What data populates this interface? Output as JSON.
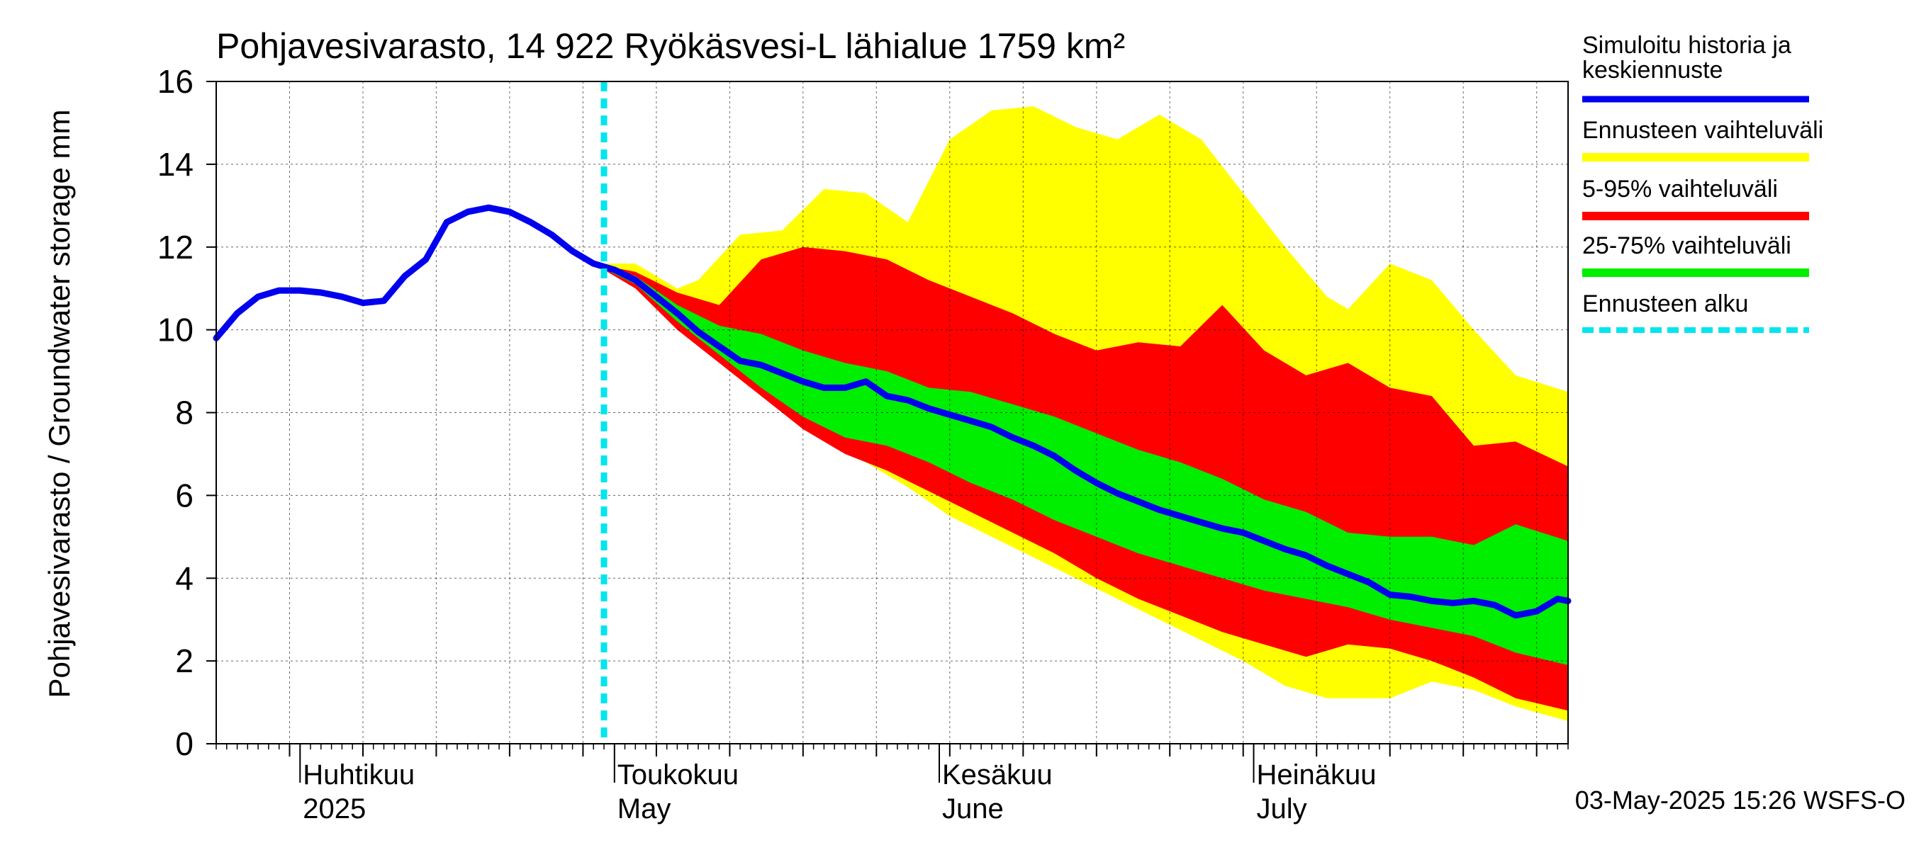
{
  "chart_data": {
    "type": "area",
    "title": "Pohjavesivarasto, 14 922 Ryökäsvesi-L lähialue 1759 km²",
    "ylabel": "Pohjavesivarasto / Groundwater storage   mm",
    "ylim": [
      0,
      16
    ],
    "yticks": [
      "0",
      "2",
      "4",
      "6",
      "8",
      "10",
      "12",
      "14",
      "16"
    ],
    "x_range": [
      "2025-03-24",
      "2025-07-31"
    ],
    "months": [
      {
        "fi": "Huhtikuu",
        "en": "2025",
        "start": "2025-04-01"
      },
      {
        "fi": "Toukokuu",
        "en": "May",
        "start": "2025-05-01"
      },
      {
        "fi": "Kesäkuu",
        "en": "June",
        "start": "2025-06-01"
      },
      {
        "fi": "Heinäkuu",
        "en": "July",
        "start": "2025-07-01"
      }
    ],
    "grid": true,
    "forecast_start": "2025-04-30",
    "legend_position": "right",
    "legend": [
      {
        "label": "Simuloitu historia ja keskiennuste",
        "color": "#0000ee",
        "style": "line"
      },
      {
        "label": "Ennusteen vaihteluväli",
        "color": "#ffff00",
        "style": "band"
      },
      {
        "label": "5-95% vaihteluväli",
        "color": "#ff0000",
        "style": "band"
      },
      {
        "label": "25-75% vaihteluväli",
        "color": "#00ee00",
        "style": "band"
      },
      {
        "label": "Ennusteen alku",
        "color": "#00e5ee",
        "style": "dashed"
      }
    ],
    "series": [
      {
        "name": "Simuloitu historia ja keskiennuste",
        "color": "#0000ee",
        "points": [
          [
            "2025-03-24",
            9.8
          ],
          [
            "2025-03-26",
            10.4
          ],
          [
            "2025-03-28",
            10.8
          ],
          [
            "2025-03-30",
            10.95
          ],
          [
            "2025-04-01",
            10.95
          ],
          [
            "2025-04-03",
            10.9
          ],
          [
            "2025-04-05",
            10.8
          ],
          [
            "2025-04-07",
            10.65
          ],
          [
            "2025-04-09",
            10.7
          ],
          [
            "2025-04-11",
            11.3
          ],
          [
            "2025-04-13",
            11.7
          ],
          [
            "2025-04-15",
            12.6
          ],
          [
            "2025-04-17",
            12.85
          ],
          [
            "2025-04-19",
            12.95
          ],
          [
            "2025-04-21",
            12.85
          ],
          [
            "2025-04-23",
            12.6
          ],
          [
            "2025-04-25",
            12.3
          ],
          [
            "2025-04-27",
            11.9
          ],
          [
            "2025-04-29",
            11.6
          ],
          [
            "2025-05-01",
            11.45
          ],
          [
            "2025-05-03",
            11.2
          ],
          [
            "2025-05-05",
            10.8
          ],
          [
            "2025-05-07",
            10.4
          ],
          [
            "2025-05-09",
            9.95
          ],
          [
            "2025-05-11",
            9.6
          ],
          [
            "2025-05-13",
            9.25
          ],
          [
            "2025-05-15",
            9.15
          ],
          [
            "2025-05-17",
            8.95
          ],
          [
            "2025-05-19",
            8.75
          ],
          [
            "2025-05-21",
            8.6
          ],
          [
            "2025-05-23",
            8.6
          ],
          [
            "2025-05-25",
            8.75
          ],
          [
            "2025-05-27",
            8.4
          ],
          [
            "2025-05-29",
            8.3
          ],
          [
            "2025-05-31",
            8.1
          ],
          [
            "2025-06-02",
            7.95
          ],
          [
            "2025-06-04",
            7.8
          ],
          [
            "2025-06-06",
            7.65
          ],
          [
            "2025-06-08",
            7.4
          ],
          [
            "2025-06-10",
            7.2
          ],
          [
            "2025-06-12",
            6.95
          ],
          [
            "2025-06-14",
            6.6
          ],
          [
            "2025-06-16",
            6.3
          ],
          [
            "2025-06-18",
            6.05
          ],
          [
            "2025-06-20",
            5.85
          ],
          [
            "2025-06-22",
            5.65
          ],
          [
            "2025-06-24",
            5.5
          ],
          [
            "2025-06-26",
            5.35
          ],
          [
            "2025-06-28",
            5.2
          ],
          [
            "2025-06-30",
            5.1
          ],
          [
            "2025-07-02",
            4.9
          ],
          [
            "2025-07-04",
            4.7
          ],
          [
            "2025-07-06",
            4.55
          ],
          [
            "2025-07-08",
            4.3
          ],
          [
            "2025-07-10",
            4.1
          ],
          [
            "2025-07-12",
            3.9
          ],
          [
            "2025-07-14",
            3.6
          ],
          [
            "2025-07-16",
            3.55
          ],
          [
            "2025-07-18",
            3.45
          ],
          [
            "2025-07-20",
            3.4
          ],
          [
            "2025-07-22",
            3.45
          ],
          [
            "2025-07-24",
            3.35
          ],
          [
            "2025-07-26",
            3.1
          ],
          [
            "2025-07-28",
            3.2
          ],
          [
            "2025-07-30",
            3.5
          ],
          [
            "2025-07-31",
            3.45
          ]
        ]
      },
      {
        "name": "Ennusteen vaihteluväli",
        "color": "#ffff00",
        "points": [
          [
            "2025-04-29",
            11.6,
            11.6
          ],
          [
            "2025-05-03",
            11.6,
            11.2
          ],
          [
            "2025-05-07",
            11.0,
            10.3
          ],
          [
            "2025-05-09",
            11.2,
            9.8
          ],
          [
            "2025-05-13",
            12.3,
            8.9
          ],
          [
            "2025-05-17",
            12.4,
            8.2
          ],
          [
            "2025-05-21",
            13.4,
            7.4
          ],
          [
            "2025-05-25",
            13.3,
            6.8
          ],
          [
            "2025-05-29",
            12.6,
            6.2
          ],
          [
            "2025-06-02",
            14.6,
            5.5
          ],
          [
            "2025-06-06",
            15.3,
            5.0
          ],
          [
            "2025-06-10",
            15.4,
            4.5
          ],
          [
            "2025-06-14",
            14.9,
            4.0
          ],
          [
            "2025-06-18",
            14.6,
            3.5
          ],
          [
            "2025-06-22",
            15.2,
            3.0
          ],
          [
            "2025-06-26",
            14.6,
            2.5
          ],
          [
            "2025-06-30",
            13.3,
            2.0
          ],
          [
            "2025-07-04",
            12.0,
            1.4
          ],
          [
            "2025-07-08",
            10.8,
            1.1
          ],
          [
            "2025-07-10",
            10.5,
            1.1
          ],
          [
            "2025-07-14",
            11.6,
            1.1
          ],
          [
            "2025-07-18",
            11.2,
            1.5
          ],
          [
            "2025-07-22",
            10.0,
            1.3
          ],
          [
            "2025-07-26",
            8.9,
            0.9
          ],
          [
            "2025-07-31",
            8.5,
            0.55
          ]
        ]
      },
      {
        "name": "5-95% vaihteluväli",
        "color": "#ff0000",
        "points": [
          [
            "2025-04-29",
            11.6,
            11.6
          ],
          [
            "2025-05-03",
            11.4,
            11.0
          ],
          [
            "2025-05-07",
            10.9,
            10.0
          ],
          [
            "2025-05-11",
            10.6,
            9.2
          ],
          [
            "2025-05-15",
            11.7,
            8.4
          ],
          [
            "2025-05-19",
            12.0,
            7.6
          ],
          [
            "2025-05-23",
            11.9,
            7.0
          ],
          [
            "2025-05-27",
            11.7,
            6.6
          ],
          [
            "2025-05-31",
            11.2,
            6.1
          ],
          [
            "2025-06-04",
            10.8,
            5.6
          ],
          [
            "2025-06-08",
            10.4,
            5.1
          ],
          [
            "2025-06-12",
            9.9,
            4.6
          ],
          [
            "2025-06-16",
            9.5,
            4.0
          ],
          [
            "2025-06-20",
            9.7,
            3.5
          ],
          [
            "2025-06-24",
            9.6,
            3.1
          ],
          [
            "2025-06-28",
            10.6,
            2.7
          ],
          [
            "2025-07-02",
            9.5,
            2.4
          ],
          [
            "2025-07-06",
            8.9,
            2.1
          ],
          [
            "2025-07-10",
            9.2,
            2.4
          ],
          [
            "2025-07-14",
            8.6,
            2.3
          ],
          [
            "2025-07-18",
            8.4,
            2.0
          ],
          [
            "2025-07-22",
            7.2,
            1.6
          ],
          [
            "2025-07-26",
            7.3,
            1.1
          ],
          [
            "2025-07-31",
            6.7,
            0.8
          ]
        ]
      },
      {
        "name": "25-75% vaihteluväli",
        "color": "#00ee00",
        "points": [
          [
            "2025-04-29",
            11.6,
            11.6
          ],
          [
            "2025-05-03",
            11.3,
            11.1
          ],
          [
            "2025-05-07",
            10.6,
            10.2
          ],
          [
            "2025-05-11",
            10.1,
            9.4
          ],
          [
            "2025-05-15",
            9.9,
            8.6
          ],
          [
            "2025-05-19",
            9.5,
            7.9
          ],
          [
            "2025-05-23",
            9.2,
            7.4
          ],
          [
            "2025-05-27",
            9.0,
            7.2
          ],
          [
            "2025-05-31",
            8.6,
            6.8
          ],
          [
            "2025-06-04",
            8.5,
            6.3
          ],
          [
            "2025-06-08",
            8.2,
            5.9
          ],
          [
            "2025-06-12",
            7.9,
            5.4
          ],
          [
            "2025-06-16",
            7.5,
            5.0
          ],
          [
            "2025-06-20",
            7.1,
            4.6
          ],
          [
            "2025-06-24",
            6.8,
            4.3
          ],
          [
            "2025-06-28",
            6.4,
            4.0
          ],
          [
            "2025-07-02",
            5.9,
            3.7
          ],
          [
            "2025-07-06",
            5.6,
            3.5
          ],
          [
            "2025-07-10",
            5.1,
            3.3
          ],
          [
            "2025-07-14",
            5.0,
            3.0
          ],
          [
            "2025-07-18",
            5.0,
            2.8
          ],
          [
            "2025-07-22",
            4.8,
            2.6
          ],
          [
            "2025-07-26",
            5.3,
            2.2
          ],
          [
            "2025-07-31",
            4.9,
            1.9
          ]
        ]
      }
    ]
  },
  "footer": {
    "timestamp": "03-May-2025 15:26 WSFS-O"
  }
}
